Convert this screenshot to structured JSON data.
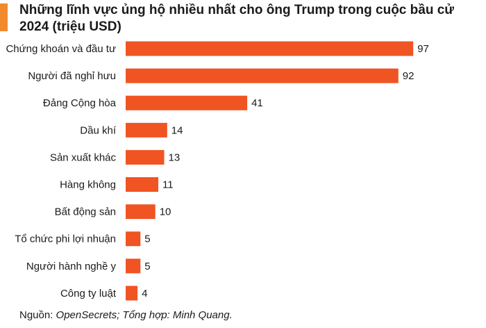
{
  "header": {
    "title": "Những lĩnh vực ủng hộ nhiều nhất cho ông Trump trong cuộc bầu cử 2024 (triệu USD)"
  },
  "footer": {
    "source_prefix": "Nguồn: ",
    "source_italic": "OpenSecrets; Tổng hợp: Minh Quang."
  },
  "colors": {
    "bar": "#f05423",
    "accent": "#f08a2c"
  },
  "chart_data": {
    "type": "bar",
    "orientation": "horizontal",
    "title": "Những lĩnh vực ủng hộ nhiều nhất cho ông Trump trong cuộc bầu cử 2024 (triệu USD)",
    "categories": [
      "Chứng khoán và đầu tư",
      "Người đã nghỉ hưu",
      "Đảng Cộng hòa",
      "Dầu khí",
      "Sản xuất khác",
      "Hàng không",
      "Bất động sản",
      "Tổ chức phi lợi nhuận",
      "Người hành nghề y",
      "Công ty luật"
    ],
    "values": [
      97,
      92,
      41,
      14,
      13,
      11,
      10,
      5,
      5,
      4
    ],
    "xlim": [
      0,
      100
    ],
    "grid": false,
    "legend": "none",
    "data_labels": true
  }
}
